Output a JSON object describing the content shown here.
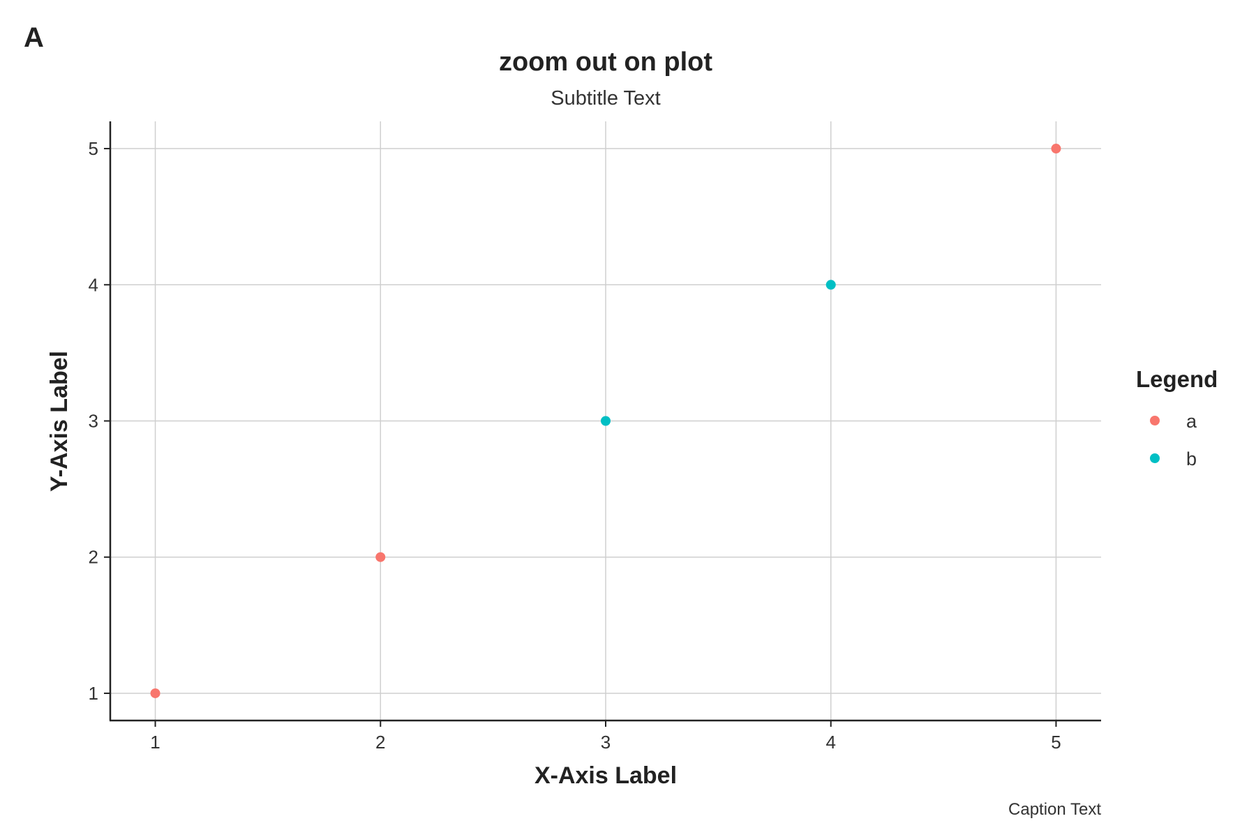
{
  "panel_tag": "A",
  "chart_data": {
    "type": "scatter",
    "title": "zoom out on plot",
    "subtitle": "Subtitle Text",
    "xlabel": "X-Axis Label",
    "ylabel": "Y-Axis Label",
    "caption": "Caption Text",
    "xlim": [
      0.8,
      5.2
    ],
    "ylim": [
      0.8,
      5.2
    ],
    "x_ticks": [
      "1",
      "2",
      "3",
      "4",
      "5"
    ],
    "y_ticks": [
      "1",
      "2",
      "3",
      "4",
      "5"
    ],
    "grid": true,
    "legend": {
      "title": "Legend",
      "placement": "right",
      "entries": [
        {
          "label": "a",
          "color": "#F8766D"
        },
        {
          "label": "b",
          "color": "#00BFC4"
        }
      ]
    },
    "points": [
      {
        "x": 1,
        "y": 1,
        "group": "a"
      },
      {
        "x": 2,
        "y": 2,
        "group": "a"
      },
      {
        "x": 3,
        "y": 3,
        "group": "b"
      },
      {
        "x": 4,
        "y": 4,
        "group": "b"
      },
      {
        "x": 5,
        "y": 5,
        "group": "a"
      }
    ]
  }
}
